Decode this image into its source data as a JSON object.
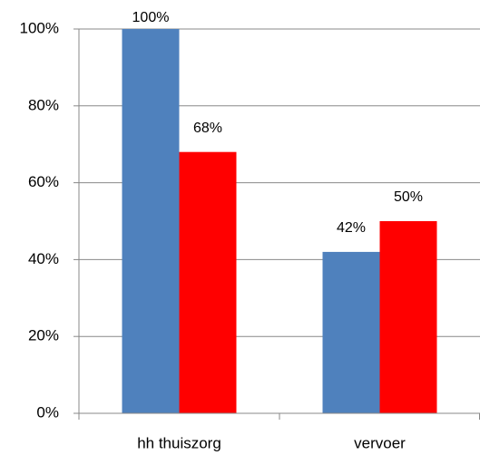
{
  "chart_data": {
    "type": "bar",
    "categories": [
      "hh  thuiszorg",
      "vervoer"
    ],
    "series": [
      {
        "color": "#4f81bd",
        "values": [
          100,
          42
        ],
        "value_labels": [
          "100%",
          "42%"
        ]
      },
      {
        "color": "#ff0000",
        "values": [
          68,
          50
        ],
        "value_labels": [
          "68%",
          "50%"
        ]
      }
    ],
    "ylim": [
      0,
      100
    ],
    "yticks": [
      {
        "value": 0,
        "label": "0%"
      },
      {
        "value": 20,
        "label": "20%"
      },
      {
        "value": 40,
        "label": "40%"
      },
      {
        "value": 60,
        "label": "60%"
      },
      {
        "value": 80,
        "label": "80%"
      },
      {
        "value": 100,
        "label": "100%"
      }
    ],
    "grid": true
  }
}
